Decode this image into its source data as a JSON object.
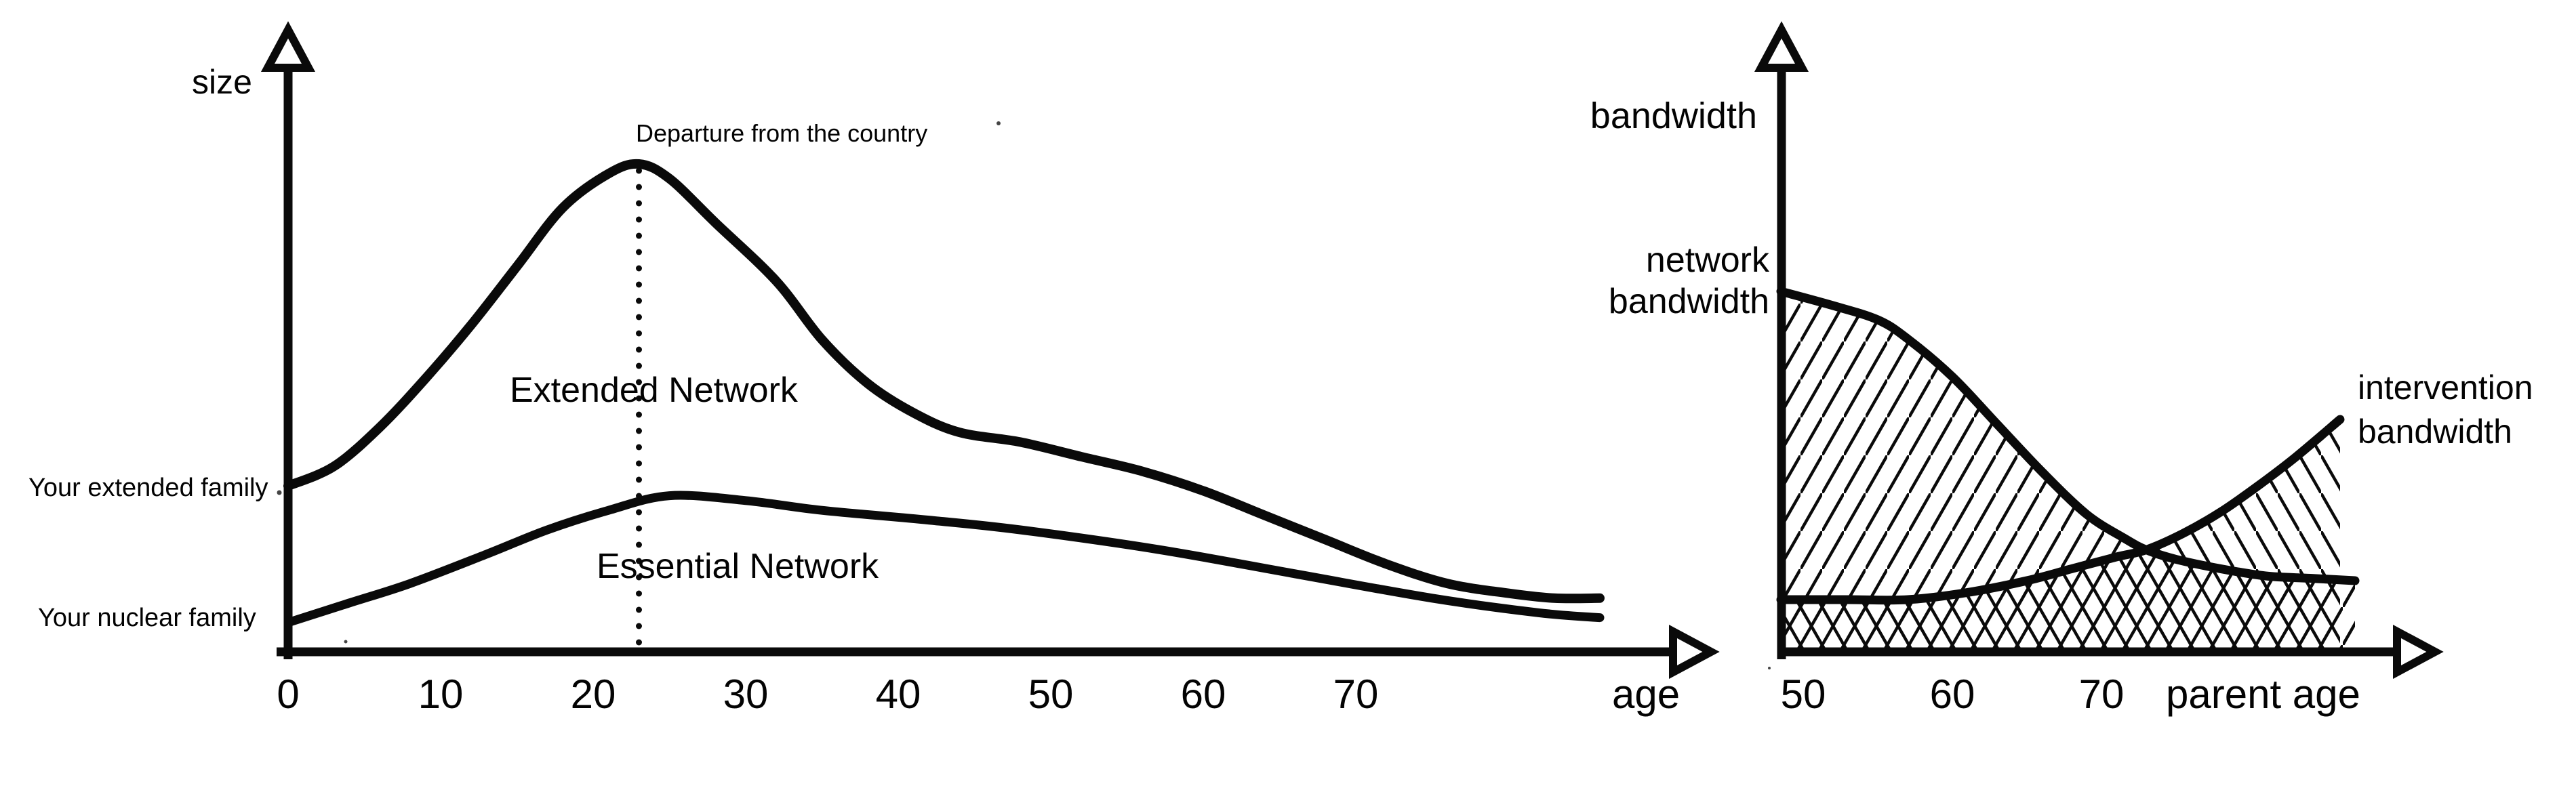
{
  "colors": {
    "ink": "#0a0a0a",
    "background": "#ffffff"
  },
  "chart_data": [
    {
      "type": "line",
      "title": "",
      "ylabel": "size",
      "xlabel": "age",
      "x_ticks": [
        0,
        10,
        20,
        30,
        40,
        50,
        60,
        70
      ],
      "xlim": [
        0,
        93
      ],
      "ylim": [
        0,
        110
      ],
      "grid": false,
      "legend_position": "inline-on-chart",
      "annotations": {
        "departure": {
          "label": "Departure from the country",
          "age": 23,
          "style": "dotted-vertical-line"
        },
        "y_start_labels": [
          {
            "label": "Your extended family",
            "marks_series": "Extended Network",
            "value_at_age_0": 34
          },
          {
            "label": "Your nuclear family",
            "marks_series": "Essential Network",
            "value_at_age_0": 6
          }
        ]
      },
      "series": [
        {
          "name": "Extended Network",
          "points": [
            [
              0,
              34
            ],
            [
              3,
              38
            ],
            [
              6,
              46
            ],
            [
              9,
              56
            ],
            [
              12,
              67
            ],
            [
              15,
              79
            ],
            [
              18,
              91
            ],
            [
              21,
              98
            ],
            [
              23,
              100
            ],
            [
              25,
              97
            ],
            [
              28,
              88
            ],
            [
              32,
              76
            ],
            [
              35,
              64
            ],
            [
              38,
              55
            ],
            [
              41,
              49
            ],
            [
              44,
              45
            ],
            [
              48,
              43
            ],
            [
              52,
              40
            ],
            [
              56,
              37
            ],
            [
              60,
              33
            ],
            [
              64,
              28
            ],
            [
              68,
              23
            ],
            [
              72,
              18
            ],
            [
              76,
              14
            ],
            [
              80,
              12
            ],
            [
              83,
              11
            ],
            [
              86,
              11
            ]
          ]
        },
        {
          "name": "Essential Network",
          "points": [
            [
              0,
              6
            ],
            [
              4,
              10
            ],
            [
              8,
              14
            ],
            [
              13,
              20
            ],
            [
              17,
              25
            ],
            [
              21,
              29
            ],
            [
              25,
              32
            ],
            [
              30,
              31
            ],
            [
              35,
              29
            ],
            [
              42,
              27
            ],
            [
              48,
              25
            ],
            [
              57,
              21
            ],
            [
              66,
              16
            ],
            [
              75,
              11
            ],
            [
              82,
              8
            ],
            [
              86,
              7
            ]
          ]
        }
      ]
    },
    {
      "type": "line",
      "title": "",
      "ylabel": "bandwidth",
      "xlabel": "parent age",
      "x_ticks": [
        50,
        60,
        70
      ],
      "xlim": [
        48,
        93
      ],
      "ylim": [
        0,
        110
      ],
      "grid": false,
      "legend_position": "inline-on-chart",
      "series": [
        {
          "name": "network bandwidth",
          "label": "network\nbandwidth",
          "hatch": "forward-diagonal",
          "area_under_curve": true,
          "points": [
            [
              48.5,
              76
            ],
            [
              52,
              73
            ],
            [
              55,
              70
            ],
            [
              57,
              66
            ],
            [
              60,
              58
            ],
            [
              63,
              48
            ],
            [
              66,
              38
            ],
            [
              69,
              29
            ],
            [
              71.5,
              24
            ],
            [
              73,
              21.5
            ],
            [
              75,
              19.5
            ],
            [
              78,
              17.5
            ],
            [
              81,
              16
            ],
            [
              84,
              15.5
            ],
            [
              87,
              15
            ]
          ]
        },
        {
          "name": "intervention bandwidth",
          "label": "intervention\nbandwidth",
          "hatch": "back-diagonal",
          "area_under_curve": true,
          "points": [
            [
              48.5,
              11
            ],
            [
              53,
              11
            ],
            [
              57,
              11
            ],
            [
              61,
              12.5
            ],
            [
              65,
              15
            ],
            [
              68,
              17.5
            ],
            [
              71,
              20
            ],
            [
              73,
              21.5
            ],
            [
              75.5,
              25
            ],
            [
              78,
              29.5
            ],
            [
              80.5,
              35
            ],
            [
              83,
              41
            ],
            [
              86,
              49
            ]
          ]
        }
      ],
      "notes": "curves cross at parent age ~73; hatched area under each curve, cross-hatch where they overlap"
    }
  ]
}
